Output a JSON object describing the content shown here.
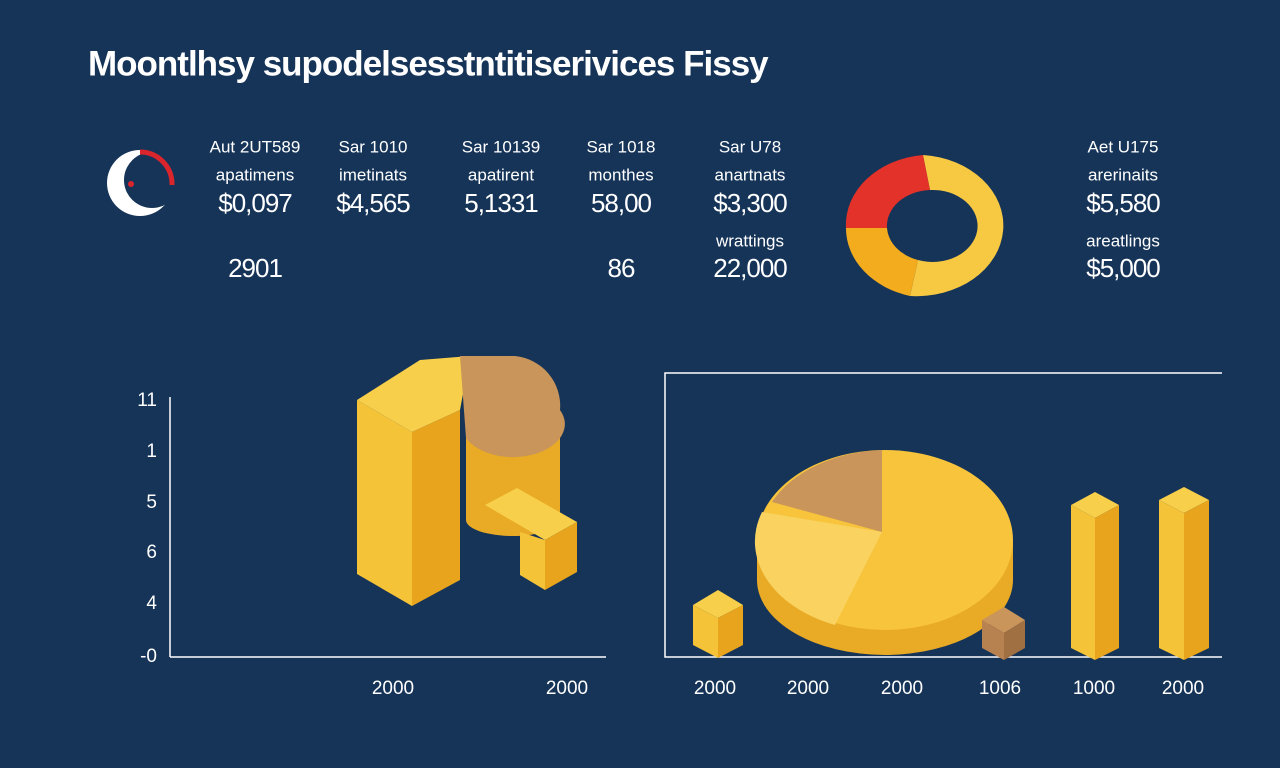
{
  "header": {
    "title": "Moontlhsy supodelsesstntitiserivices Fissy"
  },
  "stats": [
    {
      "label": "Aut 2UT589",
      "sub": "apatimens",
      "value": "$0,097",
      "extra_value": "2901"
    },
    {
      "label": "Sar 1010",
      "sub": "imetinats",
      "value": "$4,565"
    },
    {
      "label": "Sar 10139",
      "sub": "apatirent",
      "value": "5,1331"
    },
    {
      "label": "Sar 1018",
      "sub": "monthes",
      "value": "58,00",
      "extra_value": "86"
    },
    {
      "label": "Sar U78",
      "sub": "anartnats",
      "value": "$3,300",
      "extra_label": "wrattings",
      "extra_value": "22,000"
    },
    {
      "label": "Aet U175",
      "sub": "arerinaits",
      "value": "$5,580",
      "extra_label": "areatlings",
      "extra_value": "$5,000"
    }
  ],
  "left_chart": {
    "y_labels": [
      "11",
      "1",
      "5",
      "6",
      "4",
      "-0"
    ],
    "x_labels": [
      "2000",
      "2000"
    ]
  },
  "right_chart": {
    "x_labels": [
      "2000",
      "2000",
      "2000",
      "1006",
      "1000",
      "2000"
    ]
  }
}
